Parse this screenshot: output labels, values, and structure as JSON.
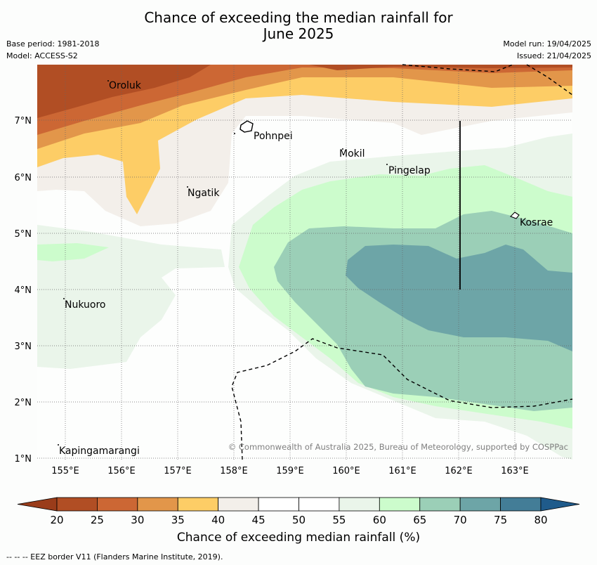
{
  "title": {
    "line1": "Chance of exceeding the median rainfall for",
    "line2": "June 2025"
  },
  "meta": {
    "base_period": "Base period: 1981-2018",
    "model": "Model: ACCESS-S2",
    "model_run": "Model run: 19/04/2025",
    "issued": "Issued: 21/04/2025"
  },
  "map": {
    "lon_ticks": [
      "155°E",
      "156°E",
      "157°E",
      "158°E",
      "159°E",
      "160°E",
      "161°E",
      "162°E",
      "163°E"
    ],
    "lat_ticks": [
      "7°N",
      "6°N",
      "5°N",
      "4°N",
      "3°N",
      "2°N",
      "1°N"
    ],
    "places": [
      {
        "name": "Oroluk"
      },
      {
        "name": "Pohnpei"
      },
      {
        "name": "Mokil"
      },
      {
        "name": "Pingelap"
      },
      {
        "name": "Ngatik"
      },
      {
        "name": "Kosrae"
      },
      {
        "name": "Nukuoro"
      },
      {
        "name": "Kapingamarangi"
      }
    ],
    "copyright": "© Commonwealth of Australia 2025, Bureau of Meteorology, supported by COSPPac"
  },
  "colorbar": {
    "title": "Chance of exceeding median rainfall (%)",
    "ticks": [
      "20",
      "25",
      "30",
      "35",
      "40",
      "45",
      "50",
      "55",
      "60",
      "65",
      "70",
      "75",
      "80"
    ],
    "colors": [
      "#b14e24",
      "#cc6734",
      "#e2964a",
      "#fdcd66",
      "#f3efea",
      "#ffffff",
      "#ffffff",
      "#eaf5ea",
      "#ccfccc",
      "#9bcfb7",
      "#6da5a7",
      "#437d97"
    ],
    "under_color": "#9a3c1a",
    "over_color": "#1f5b8b"
  },
  "footer": "--  --  -- EEZ border V11 (Flanders Marine Institute, 2019)."
}
